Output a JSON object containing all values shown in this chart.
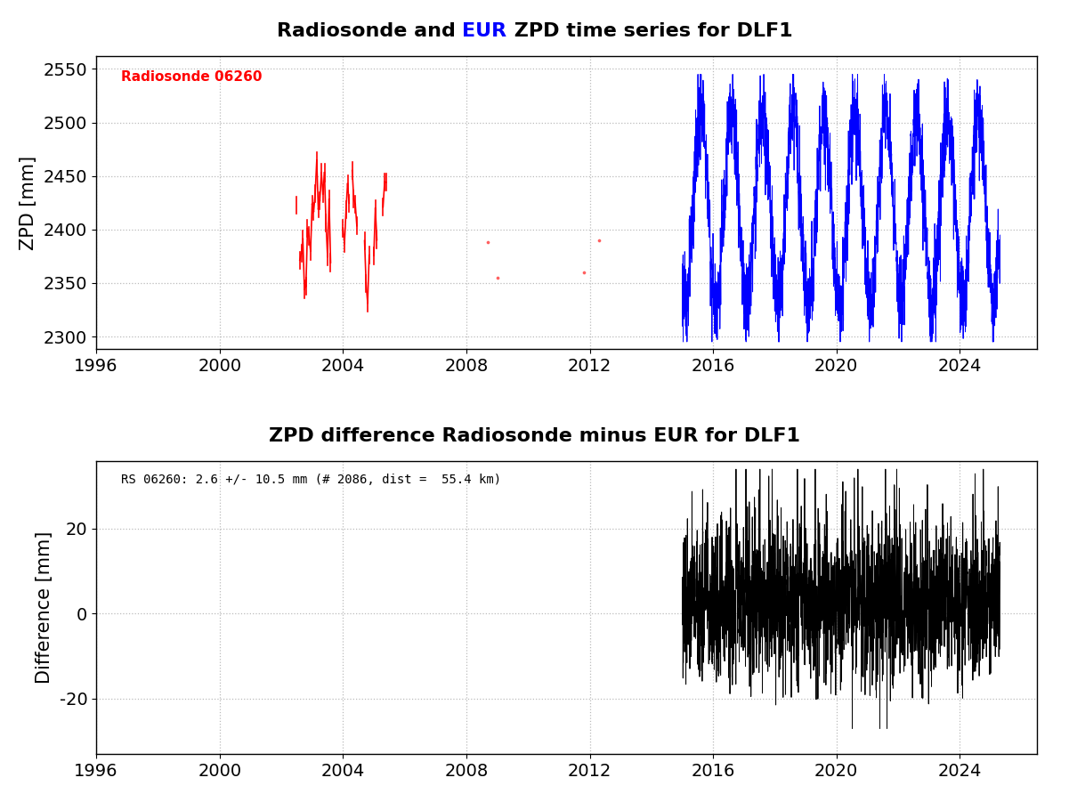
{
  "title1_parts": [
    {
      "text": "Radiosonde and ",
      "color": "black"
    },
    {
      "text": "EUR",
      "color": "blue"
    },
    {
      "text": " ZPD time series for DLF1",
      "color": "black"
    }
  ],
  "title2": "ZPD difference Radiosonde minus EUR for DLF1",
  "ylabel1": "ZPD [mm]",
  "ylabel2": "Difference [mm]",
  "xlim": [
    1996,
    2026.5
  ],
  "xticks": [
    1996,
    2000,
    2004,
    2008,
    2012,
    2016,
    2020,
    2024
  ],
  "ylim1": [
    2288,
    2562
  ],
  "yticks1": [
    2300,
    2350,
    2400,
    2450,
    2500,
    2550
  ],
  "ylim2": [
    -33,
    36
  ],
  "yticks2": [
    -20,
    0,
    20
  ],
  "legend1_label": "Radiosonde 06260",
  "legend1_color": "red",
  "annotation2": "RS 06260: 2.6 +/- 10.5 mm (# 2086, dist =  55.4 km)",
  "background_color": "white",
  "grid_color": "#aaaaaa"
}
